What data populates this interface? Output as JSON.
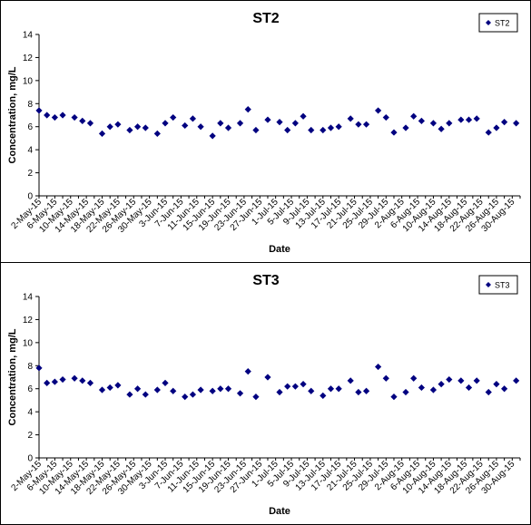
{
  "chart_data": [
    {
      "type": "scatter",
      "title": "ST2",
      "xlabel": "Date",
      "ylabel": "Concentration, mg/L",
      "ylim": [
        0,
        14
      ],
      "yticks": [
        0,
        2,
        4,
        6,
        8,
        10,
        12,
        14
      ],
      "xlim": [
        "2015-05-02",
        "2015-09-01"
      ],
      "xtick_labels": [
        "2-May-15",
        "6-May-15",
        "10-May-15",
        "14-May-15",
        "18-May-15",
        "22-May-15",
        "26-May-15",
        "30-May-15",
        "3-Jun-15",
        "7-Jun-15",
        "11-Jun-15",
        "15-Jun-15",
        "19-Jun-15",
        "23-Jun-15",
        "27-Jun-15",
        "1-Jul-15",
        "5-Jul-15",
        "9-Jul-15",
        "13-Jul-15",
        "17-Jul-15",
        "21-Jul-15",
        "25-Jul-15",
        "29-Jul-15",
        "2-Aug-15",
        "6-Aug-15",
        "10-Aug-15",
        "14-Aug-15",
        "18-Aug-15",
        "22-Aug-15",
        "26-Aug-15",
        "30-Aug-15"
      ],
      "grid": false,
      "legend_position": "top-right",
      "series": [
        {
          "name": "ST2",
          "color": "#000080",
          "marker": "diamond",
          "x": [
            "2015-05-02",
            "2015-05-04",
            "2015-05-06",
            "2015-05-08",
            "2015-05-11",
            "2015-05-13",
            "2015-05-15",
            "2015-05-18",
            "2015-05-20",
            "2015-05-22",
            "2015-05-25",
            "2015-05-27",
            "2015-05-29",
            "2015-06-01",
            "2015-06-03",
            "2015-06-05",
            "2015-06-08",
            "2015-06-10",
            "2015-06-12",
            "2015-06-15",
            "2015-06-17",
            "2015-06-19",
            "2015-06-22",
            "2015-06-24",
            "2015-06-26",
            "2015-06-29",
            "2015-07-02",
            "2015-07-04",
            "2015-07-06",
            "2015-07-08",
            "2015-07-10",
            "2015-07-13",
            "2015-07-15",
            "2015-07-17",
            "2015-07-20",
            "2015-07-22",
            "2015-07-24",
            "2015-07-27",
            "2015-07-29",
            "2015-07-31",
            "2015-08-03",
            "2015-08-05",
            "2015-08-07",
            "2015-08-10",
            "2015-08-12",
            "2015-08-14",
            "2015-08-17",
            "2015-08-19",
            "2015-08-21",
            "2015-08-24",
            "2015-08-26",
            "2015-08-28",
            "2015-08-31"
          ],
          "y": [
            7.4,
            7.0,
            6.8,
            7.0,
            6.8,
            6.5,
            6.3,
            5.4,
            6.0,
            6.2,
            5.7,
            6.0,
            5.9,
            5.4,
            6.3,
            6.8,
            6.1,
            6.7,
            6.0,
            5.2,
            6.3,
            5.9,
            6.3,
            7.5,
            5.7,
            6.6,
            6.4,
            5.7,
            6.3,
            6.9,
            5.7,
            5.7,
            5.9,
            6.0,
            6.7,
            6.2,
            6.2,
            7.4,
            6.8,
            5.5,
            5.9,
            6.9,
            6.5,
            6.3,
            5.8,
            6.3,
            6.6,
            6.6,
            6.7,
            5.5,
            5.9,
            6.4,
            6.3
          ]
        }
      ]
    },
    {
      "type": "scatter",
      "title": "ST3",
      "xlabel": "Date",
      "ylabel": "Concentration, mg/L",
      "ylim": [
        0,
        14
      ],
      "yticks": [
        0,
        2,
        4,
        6,
        8,
        10,
        12,
        14
      ],
      "xlim": [
        "2015-05-02",
        "2015-09-01"
      ],
      "xtick_labels": [
        "2-May-15",
        "6-May-15",
        "10-May-15",
        "14-May-15",
        "18-May-15",
        "22-May-15",
        "26-May-15",
        "30-May-15",
        "3-Jun-15",
        "7-Jun-15",
        "11-Jun-15",
        "15-Jun-15",
        "19-Jun-15",
        "23-Jun-15",
        "27-Jun-15",
        "1-Jul-15",
        "5-Jul-15",
        "9-Jul-15",
        "13-Jul-15",
        "17-Jul-15",
        "21-Jul-15",
        "25-Jul-15",
        "29-Jul-15",
        "2-Aug-15",
        "6-Aug-15",
        "10-Aug-15",
        "14-Aug-15",
        "18-Aug-15",
        "22-Aug-15",
        "26-Aug-15",
        "30-Aug-15"
      ],
      "grid": false,
      "legend_position": "top-right",
      "series": [
        {
          "name": "ST3",
          "color": "#000080",
          "marker": "diamond",
          "x": [
            "2015-05-02",
            "2015-05-04",
            "2015-05-06",
            "2015-05-08",
            "2015-05-11",
            "2015-05-13",
            "2015-05-15",
            "2015-05-18",
            "2015-05-20",
            "2015-05-22",
            "2015-05-25",
            "2015-05-27",
            "2015-05-29",
            "2015-06-01",
            "2015-06-03",
            "2015-06-05",
            "2015-06-08",
            "2015-06-10",
            "2015-06-12",
            "2015-06-15",
            "2015-06-17",
            "2015-06-19",
            "2015-06-22",
            "2015-06-24",
            "2015-06-26",
            "2015-06-29",
            "2015-07-02",
            "2015-07-04",
            "2015-07-06",
            "2015-07-08",
            "2015-07-10",
            "2015-07-13",
            "2015-07-15",
            "2015-07-17",
            "2015-07-20",
            "2015-07-22",
            "2015-07-24",
            "2015-07-27",
            "2015-07-29",
            "2015-07-31",
            "2015-08-03",
            "2015-08-05",
            "2015-08-07",
            "2015-08-10",
            "2015-08-12",
            "2015-08-14",
            "2015-08-17",
            "2015-08-19",
            "2015-08-21",
            "2015-08-24",
            "2015-08-26",
            "2015-08-28",
            "2015-08-31"
          ],
          "y": [
            7.8,
            6.5,
            6.6,
            6.8,
            6.9,
            6.7,
            6.5,
            5.9,
            6.1,
            6.3,
            5.5,
            6.0,
            5.5,
            5.9,
            6.5,
            5.8,
            5.3,
            5.5,
            5.9,
            5.8,
            6.0,
            6.0,
            5.6,
            7.5,
            5.3,
            7.0,
            5.7,
            6.2,
            6.2,
            6.4,
            5.8,
            5.4,
            6.0,
            6.0,
            6.7,
            5.7,
            5.8,
            7.9,
            6.9,
            5.3,
            5.7,
            6.9,
            6.1,
            5.9,
            6.4,
            6.8,
            6.7,
            6.1,
            6.7,
            5.7,
            6.4,
            6.0,
            6.7
          ]
        }
      ]
    }
  ]
}
